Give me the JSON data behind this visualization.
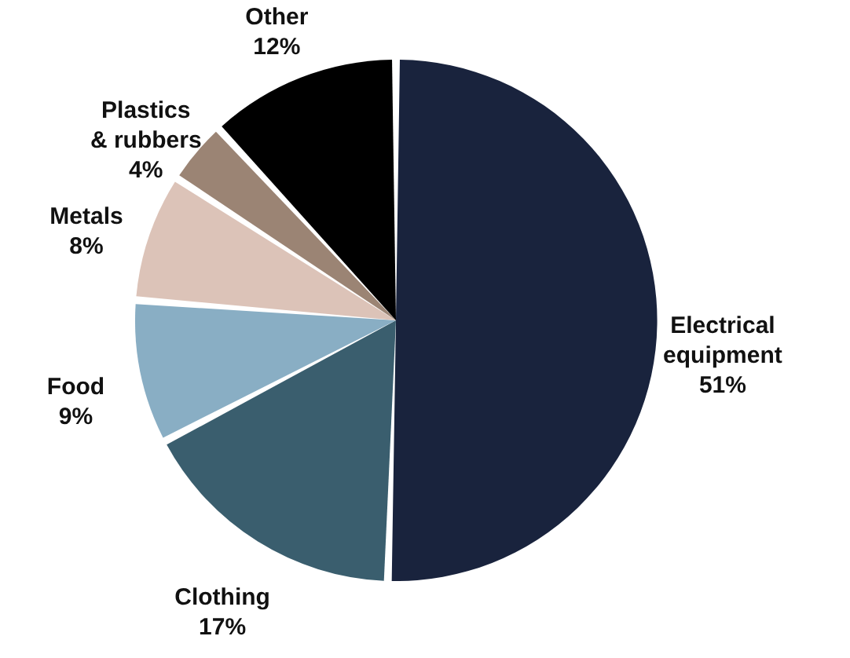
{
  "chart_data": {
    "type": "pie",
    "categories": [
      "Electrical equipment",
      "Clothing",
      "Food",
      "Metals",
      "Plastics & rubbers",
      "Other"
    ],
    "values": [
      51,
      17,
      9,
      8,
      4,
      12
    ],
    "value_labels": [
      "51%",
      "17%",
      "9%",
      "8%",
      "4%",
      "12%"
    ],
    "colors": [
      "#19233d",
      "#3a5e6e",
      "#89aec4",
      "#dcc3b8",
      "#9b8474",
      "#000000"
    ]
  }
}
